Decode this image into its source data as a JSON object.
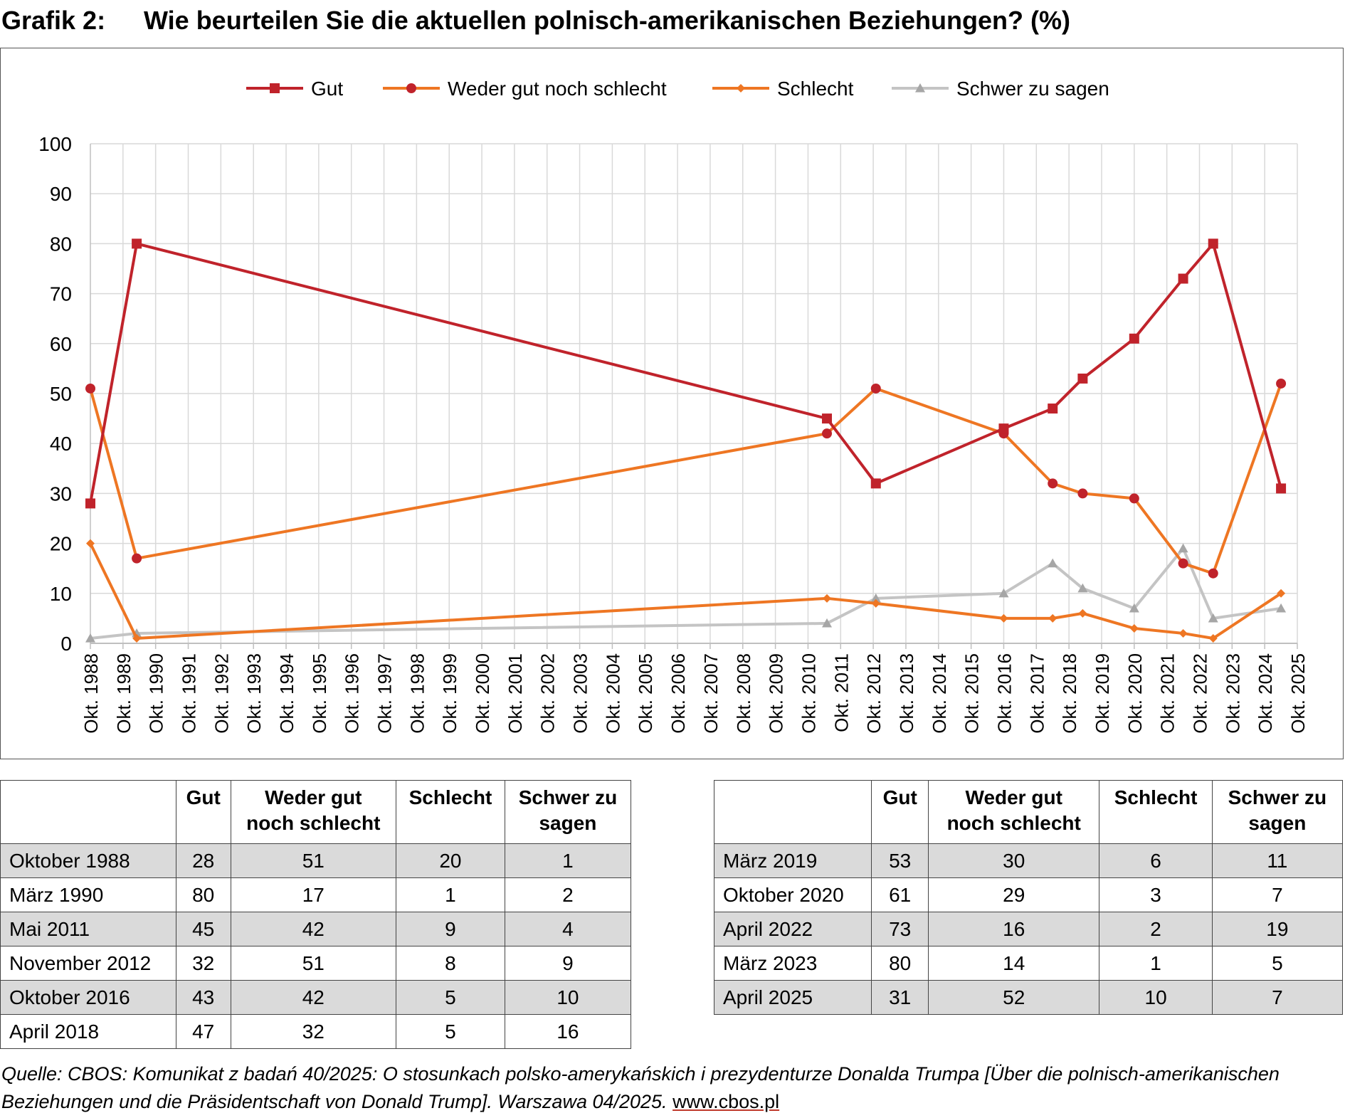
{
  "title": {
    "label": "Grafik 2:",
    "text": "Wie beurteilen Sie die aktuellen polnisch-amerikanischen Beziehungen? (%)"
  },
  "chart_data": {
    "type": "line",
    "x_ticks": [
      "Okt. 1988",
      "Okt. 1989",
      "Okt. 1990",
      "Okt. 1991",
      "Okt. 1992",
      "Okt. 1993",
      "Okt. 1994",
      "Okt. 1995",
      "Okt. 1996",
      "Okt. 1997",
      "Okt. 1998",
      "Okt. 1999",
      "Okt. 2000",
      "Okt. 2001",
      "Okt. 2002",
      "Okt. 2003",
      "Okt. 2004",
      "Okt. 2005",
      "Okt. 2006",
      "Okt. 2007",
      "Okt. 2008",
      "Okt. 2009",
      "Okt. 2010",
      "Okt. 2011",
      "Okt. 2012",
      "Okt. 2013",
      "Okt. 2014",
      "Okt. 2015",
      "Okt. 2016",
      "Okt. 2017",
      "Okt. 2018",
      "Okt. 2019",
      "Okt. 2020",
      "Okt. 2021",
      "Okt. 2022",
      "Okt. 2023",
      "Okt. 2024",
      "Okt. 2025"
    ],
    "x_dates": [
      1988.75,
      1990.17,
      2011.33,
      2012.83,
      2016.75,
      2018.25,
      2019.17,
      2020.75,
      2022.25,
      2023.17,
      2025.25
    ],
    "y_ticks": [
      "0",
      "10",
      "20",
      "30",
      "40",
      "50",
      "60",
      "70",
      "80",
      "90",
      "100"
    ],
    "ylim": [
      0,
      100
    ],
    "grid": true,
    "legend_position": "top",
    "series": [
      {
        "name": "Gut",
        "color": "#c0232b",
        "marker": "square",
        "values": [
          28,
          80,
          45,
          32,
          43,
          47,
          53,
          61,
          73,
          80,
          31
        ]
      },
      {
        "name": "Weder gut noch schlecht",
        "color": "#ee7623",
        "marker": "circle",
        "marker_color": "#c0232b",
        "values": [
          51,
          17,
          42,
          51,
          42,
          32,
          30,
          29,
          16,
          14,
          52
        ]
      },
      {
        "name": "Schlecht",
        "color": "#ee7623",
        "marker": "diamond",
        "values": [
          20,
          1,
          9,
          8,
          5,
          5,
          6,
          3,
          2,
          1,
          10
        ]
      },
      {
        "name": "Schwer zu sagen",
        "color": "#c4c4c4",
        "marker": "triangle",
        "marker_color": "#a6a6a6",
        "values": [
          1,
          2,
          4,
          9,
          10,
          16,
          11,
          7,
          19,
          5,
          7
        ]
      }
    ]
  },
  "tables": {
    "left": {
      "headers": [
        "",
        "Gut",
        "Weder gut\nnoch schlecht",
        "Schlecht",
        "Schwer zu\nsagen"
      ],
      "rows": [
        [
          "Oktober 1988",
          "28",
          "51",
          "20",
          "1"
        ],
        [
          "März 1990",
          "80",
          "17",
          "1",
          "2"
        ],
        [
          "Mai 2011",
          "45",
          "42",
          "9",
          "4"
        ],
        [
          "November 2012",
          "32",
          "51",
          "8",
          "9"
        ],
        [
          "Oktober 2016",
          "43",
          "42",
          "5",
          "10"
        ],
        [
          "April 2018",
          "47",
          "32",
          "5",
          "16"
        ]
      ]
    },
    "right": {
      "headers": [
        "",
        "Gut",
        "Weder gut\nnoch schlecht",
        "Schlecht",
        "Schwer zu\nsagen"
      ],
      "rows": [
        [
          "März 2019",
          "53",
          "30",
          "6",
          "11"
        ],
        [
          "Oktober 2020",
          "61",
          "29",
          "3",
          "7"
        ],
        [
          "April 2022",
          "73",
          "16",
          "2",
          "19"
        ],
        [
          "März 2023",
          "80",
          "14",
          "1",
          "5"
        ],
        [
          "April 2025",
          "31",
          "52",
          "10",
          "7"
        ]
      ]
    }
  },
  "source": {
    "text": "Quelle: CBOS: Komunikat z badań 40/2025: O stosunkach polsko-amerykańskich i prezydenturze Donalda Trumpa [Über die polnisch-amerikanischen Beziehungen und die Präsidentschaft von Donald Trump]. Warszawa 04/2025. ",
    "link": "www.cbos.pl"
  }
}
